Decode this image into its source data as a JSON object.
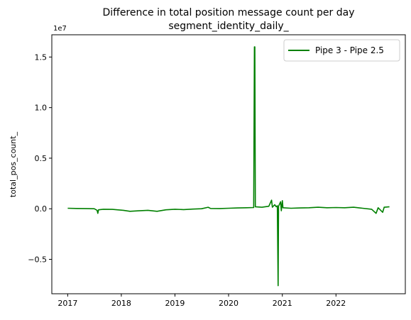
{
  "chart_data": {
    "type": "line",
    "title": "Difference in total position message count per day",
    "subtitle": "segment_identity_daily_",
    "xlabel": "",
    "ylabel": "total_pos_count_",
    "y_offset_label": "1e7",
    "xlim": [
      "2016-09-15",
      "2023-04-18"
    ],
    "ylim": [
      -8400000,
      17200000
    ],
    "x_ticks": [
      {
        "label": "2017",
        "date": "2017-01-01"
      },
      {
        "label": "2018",
        "date": "2018-01-01"
      },
      {
        "label": "2019",
        "date": "2019-01-01"
      },
      {
        "label": "2020",
        "date": "2020-01-01"
      },
      {
        "label": "2021",
        "date": "2021-01-01"
      },
      {
        "label": "2022",
        "date": "2022-01-01"
      }
    ],
    "y_ticks": [
      {
        "label": "1.5",
        "value": 15000000
      },
      {
        "label": "1.0",
        "value": 10000000
      },
      {
        "label": "0.5",
        "value": 5000000
      },
      {
        "label": "0.0",
        "value": 0
      },
      {
        "label": "−0.5",
        "value": -5000000
      }
    ],
    "grid": false,
    "legend_position": "top-right",
    "series": [
      {
        "name": "Pipe 3 - Pipe 2.5",
        "color": "#008000",
        "points": [
          [
            "2017-01-01",
            50000
          ],
          [
            "2017-03-01",
            30000
          ],
          [
            "2017-05-01",
            20000
          ],
          [
            "2017-07-01",
            0
          ],
          [
            "2017-07-20",
            -150000
          ],
          [
            "2017-07-25",
            -450000
          ],
          [
            "2017-07-30",
            -100000
          ],
          [
            "2017-09-01",
            -50000
          ],
          [
            "2017-11-01",
            -60000
          ],
          [
            "2018-01-15",
            -150000
          ],
          [
            "2018-03-01",
            -250000
          ],
          [
            "2018-05-01",
            -200000
          ],
          [
            "2018-07-01",
            -150000
          ],
          [
            "2018-09-01",
            -250000
          ],
          [
            "2018-11-01",
            -100000
          ],
          [
            "2019-01-01",
            -50000
          ],
          [
            "2019-03-01",
            -80000
          ],
          [
            "2019-05-01",
            -30000
          ],
          [
            "2019-07-01",
            0
          ],
          [
            "2019-08-15",
            150000
          ],
          [
            "2019-09-01",
            30000
          ],
          [
            "2019-11-01",
            20000
          ],
          [
            "2020-01-01",
            50000
          ],
          [
            "2020-03-01",
            80000
          ],
          [
            "2020-05-01",
            100000
          ],
          [
            "2020-06-20",
            120000
          ],
          [
            "2020-06-25",
            16000000
          ],
          [
            "2020-06-28",
            16000000
          ],
          [
            "2020-07-01",
            200000
          ],
          [
            "2020-08-15",
            150000
          ],
          [
            "2020-10-01",
            250000
          ],
          [
            "2020-10-20",
            850000
          ],
          [
            "2020-10-25",
            150000
          ],
          [
            "2020-11-10",
            400000
          ],
          [
            "2020-11-20",
            200000
          ],
          [
            "2020-11-28",
            300000
          ],
          [
            "2020-12-03",
            -7600000
          ],
          [
            "2020-12-06",
            250000
          ],
          [
            "2020-12-20",
            700000
          ],
          [
            "2020-12-25",
            -200000
          ],
          [
            "2021-01-01",
            800000
          ],
          [
            "2021-01-05",
            100000
          ],
          [
            "2021-03-01",
            50000
          ],
          [
            "2021-05-01",
            80000
          ],
          [
            "2021-07-01",
            100000
          ],
          [
            "2021-09-01",
            150000
          ],
          [
            "2021-11-01",
            100000
          ],
          [
            "2022-01-01",
            120000
          ],
          [
            "2022-03-01",
            100000
          ],
          [
            "2022-05-01",
            150000
          ],
          [
            "2022-07-01",
            50000
          ],
          [
            "2022-09-01",
            -50000
          ],
          [
            "2022-10-01",
            -450000
          ],
          [
            "2022-10-15",
            100000
          ],
          [
            "2022-11-15",
            -350000
          ],
          [
            "2022-11-25",
            150000
          ],
          [
            "2022-12-31",
            200000
          ]
        ]
      }
    ]
  }
}
